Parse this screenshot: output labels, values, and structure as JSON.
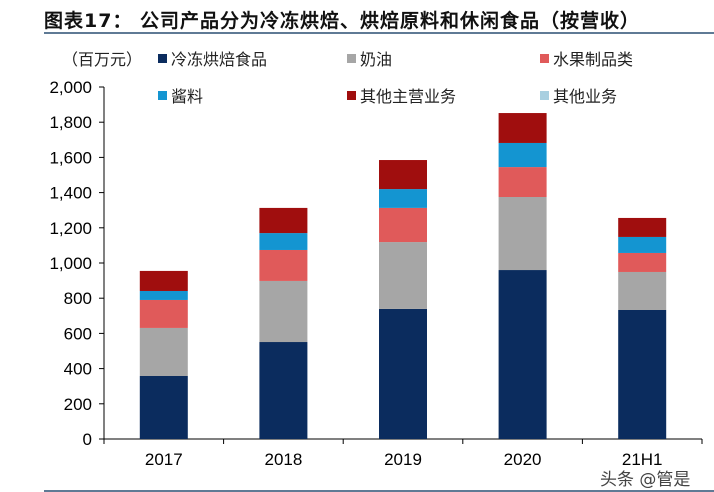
{
  "title": "图表17： 公司产品分为冷冻烘焙、烘焙原料和休闲食品（按营收）",
  "watermark": "头条 @管是",
  "chart_data": {
    "type": "bar",
    "stacked": true,
    "title": "图表17： 公司产品分为冷冻烘焙、烘焙原料和休闲食品（按营收）",
    "ylabel": "（百万元）",
    "ylim": [
      0,
      2000
    ],
    "yticks": [
      "0",
      "200",
      "400",
      "600",
      "800",
      "1,000",
      "1,200",
      "1,400",
      "1,600",
      "1,800",
      "2,000"
    ],
    "categories": [
      "2017",
      "2018",
      "2019",
      "2020",
      "21H1"
    ],
    "legend_position": "top",
    "grid": false,
    "series": [
      {
        "name": "冷冻烘焙食品",
        "color": "#0b2c5e",
        "values": [
          358,
          551,
          739,
          960,
          733
        ]
      },
      {
        "name": "奶油",
        "color": "#a6a6a6",
        "values": [
          273,
          347,
          380,
          415,
          216
        ]
      },
      {
        "name": "水果制品类",
        "color": "#e05a5a",
        "values": [
          159,
          176,
          194,
          170,
          108
        ]
      },
      {
        "name": "酱料",
        "color": "#1495d1",
        "values": [
          51,
          96,
          107,
          137,
          91
        ]
      },
      {
        "name": "其他主营业务",
        "color": "#a00e0e",
        "values": [
          114,
          143,
          165,
          170,
          108
        ]
      },
      {
        "name": "其他业务",
        "color": "#a8cfe0",
        "values": [
          0,
          0,
          0,
          0,
          0
        ]
      }
    ]
  }
}
